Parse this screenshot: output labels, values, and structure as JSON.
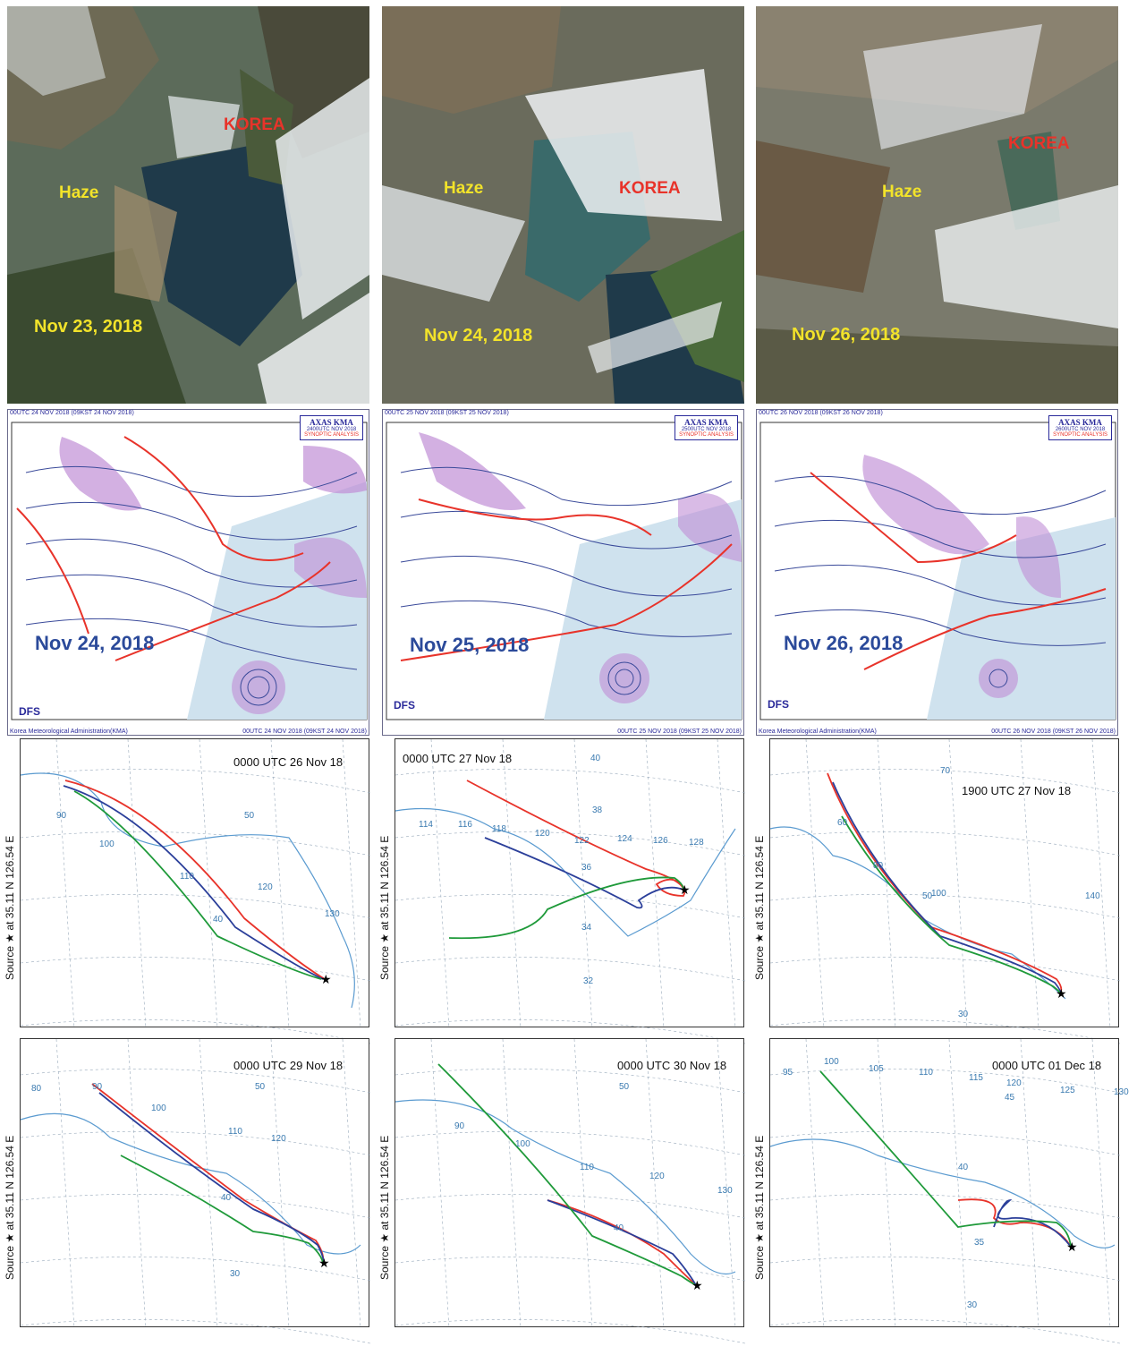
{
  "satellite": [
    {
      "haze": "Haze",
      "korea": "KOREA",
      "date": "Nov  23,  2018"
    },
    {
      "haze": "Haze",
      "korea": "KOREA",
      "date": "Nov  24,  2018"
    },
    {
      "haze": "Haze",
      "korea": "KOREA",
      "date": "Nov  26,  2018"
    }
  ],
  "synoptic": [
    {
      "header": "00UTC 24 NOV 2018 (09KST 24 NOV 2018)",
      "box_title": "AXAS KMA",
      "box_time": "2400UTC NOV 2018",
      "box_sub": "SYNOPTIC ANALYSIS",
      "date": "Nov  24,  2018",
      "dfs": "DFS",
      "footer_left": "Korea Meteorological Administration(KMA)",
      "footer_right": "00UTC 24 NOV 2018 (09KST 24 NOV 2018)"
    },
    {
      "header": "00UTC 25 NOV 2018 (09KST 25 NOV 2018)",
      "box_title": "AXAS KMA",
      "box_time": "2500UTC NOV 2018",
      "box_sub": "SYNOPTIC ANALYSIS",
      "date": "Nov  25,  2018",
      "dfs": "DFS",
      "footer_left": "",
      "footer_right": "00UTC 25 NOV 2018 (09KST 25 NOV 2018)"
    },
    {
      "header": "00UTC 26 NOV 2018 (09KST 26 NOV 2018)",
      "box_title": "AXAS KMA",
      "box_time": "2600UTC NOV 2018",
      "box_sub": "SYNOPTIC ANALYSIS",
      "date": "Nov  26,  2018",
      "dfs": "DFS",
      "footer_left": "Korea Meteorological Administration(KMA)",
      "footer_right": "00UTC 26 NOV 2018 (09KST 26 NOV 2018)"
    }
  ],
  "trajectory": {
    "axis_label": "Source ★  at   35.11 N  126.54 E",
    "colors": {
      "red": "#e8332a",
      "blue": "#2b3f9a",
      "green": "#1f9a3a",
      "coast": "#5b9bd0"
    },
    "panels": [
      {
        "title": "0000 UTC 26 Nov 18",
        "ticks": [
          "90",
          "100",
          "110",
          "120",
          "130",
          "50",
          "40"
        ]
      },
      {
        "title": "0000 UTC 27 Nov 18",
        "ticks": [
          "114",
          "116",
          "118",
          "120",
          "122",
          "124",
          "126",
          "128",
          "40",
          "38",
          "36",
          "34",
          "32"
        ]
      },
      {
        "title": "1900 UTC 27 Nov 18",
        "ticks": [
          "70",
          "60",
          "80",
          "100",
          "50",
          "140",
          "30"
        ]
      },
      {
        "title": "0000 UTC 29 Nov 18",
        "ticks": [
          "80",
          "90",
          "100",
          "110",
          "120",
          "50",
          "40",
          "30"
        ]
      },
      {
        "title": "0000 UTC 30 Nov 18",
        "ticks": [
          "90",
          "100",
          "110",
          "120",
          "130",
          "50",
          "40"
        ]
      },
      {
        "title": "0000 UTC 01 Dec 18",
        "ticks": [
          "95",
          "100",
          "105",
          "110",
          "115",
          "120",
          "125",
          "130",
          "45",
          "40",
          "35",
          "30"
        ]
      }
    ]
  }
}
